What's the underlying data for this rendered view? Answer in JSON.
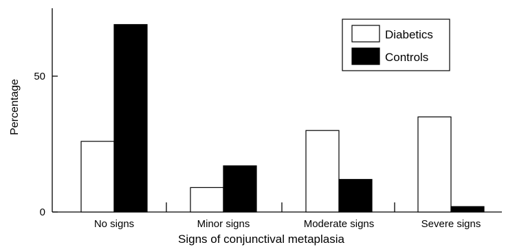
{
  "chart_data": {
    "type": "bar",
    "categories": [
      "No signs",
      "Minor signs",
      "Moderate signs",
      "Severe signs"
    ],
    "series": [
      {
        "name": "Diabetics",
        "values": [
          26,
          9,
          30,
          35
        ],
        "color": "#ffffff"
      },
      {
        "name": "Controls",
        "values": [
          69,
          17,
          12,
          2
        ],
        "color": "#000000"
      }
    ],
    "xlabel": "Signs of conjunctival metaplasia",
    "ylabel": "Percentage",
    "yticks": [
      "0",
      "50"
    ],
    "ylim": [
      0,
      75
    ],
    "grid": false,
    "legend_position": "top-right"
  }
}
